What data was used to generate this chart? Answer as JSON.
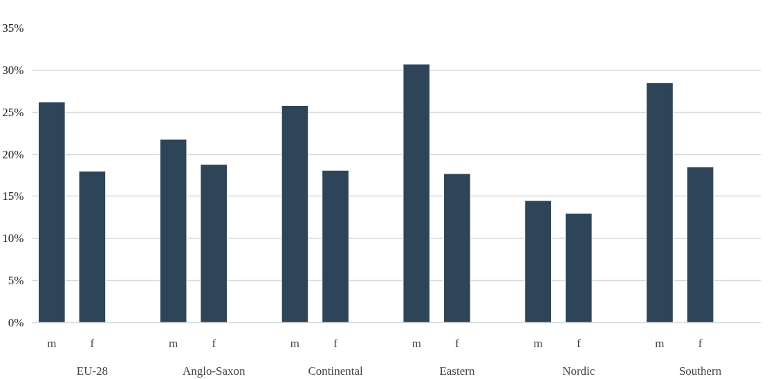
{
  "chart_data": {
    "type": "bar",
    "categories": [
      "EU-28",
      "Anglo-Saxon",
      "Continental",
      "Eastern",
      "Nordic",
      "Southern"
    ],
    "series": [
      {
        "name": "m",
        "color": "#2e4459",
        "values": [
          26.2,
          21.8,
          25.8,
          30.7,
          14.5,
          28.5
        ]
      },
      {
        "name": "f",
        "color": "#2e4459",
        "values": [
          18.0,
          18.8,
          18.1,
          17.7,
          13.0,
          18.5
        ]
      }
    ],
    "ylim": [
      0,
      35
    ],
    "yticks": [
      {
        "value": 0,
        "label": "0%"
      },
      {
        "value": 5,
        "label": "5%"
      },
      {
        "value": 10,
        "label": "10%"
      },
      {
        "value": 15,
        "label": "15%"
      },
      {
        "value": 20,
        "label": "20%"
      },
      {
        "value": 25,
        "label": "25%"
      },
      {
        "value": 30,
        "label": "30%"
      },
      {
        "value": 35,
        "label": "35%"
      }
    ],
    "grid": "y"
  }
}
